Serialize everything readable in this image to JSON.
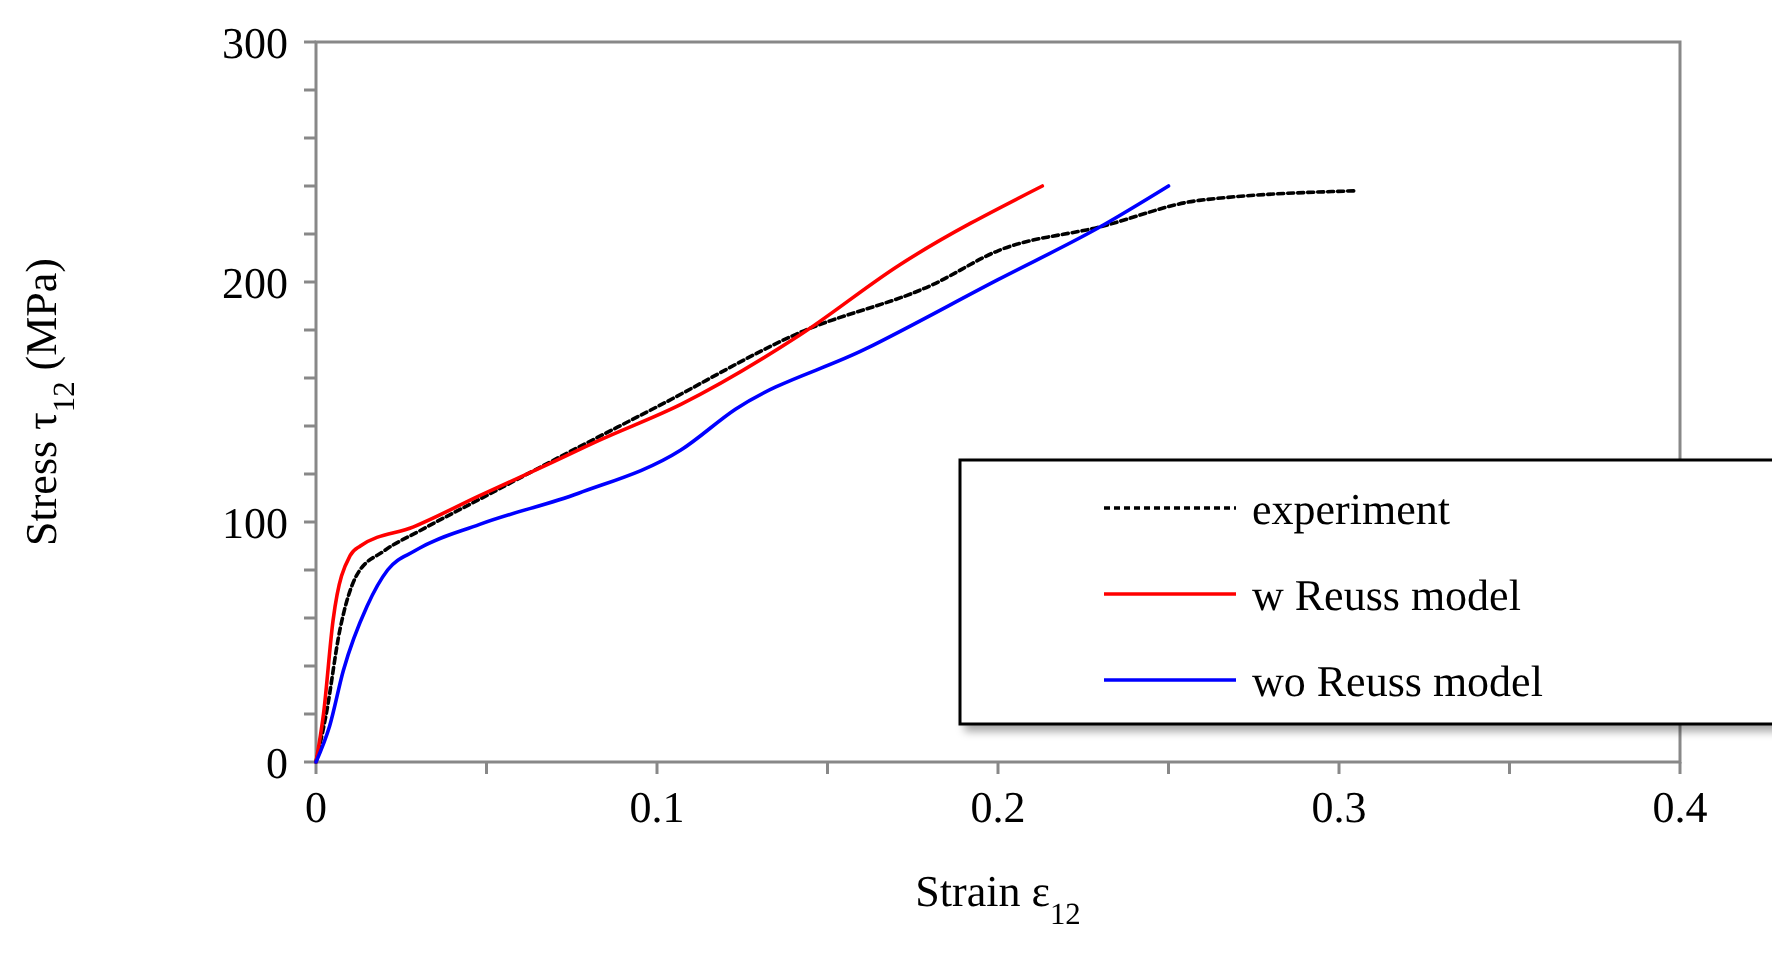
{
  "chart_data": {
    "type": "line",
    "xlabel": "Strain ε$_{12}$",
    "ylabel": "Stress  τ$_{12}$ (MPa)",
    "xlim": [
      0,
      0.4
    ],
    "ylim": [
      0,
      300
    ],
    "xticks": [
      0,
      {
        "value": 0.05,
        "label": null
      },
      0.1,
      {
        "value": 0.15,
        "label": null
      },
      0.2,
      {
        "value": 0.25,
        "label": null
      },
      0.3,
      {
        "value": 0.35,
        "label": null
      },
      0.4
    ],
    "yticks": [
      0,
      {
        "value": 20,
        "label": null
      },
      {
        "value": 40,
        "label": null
      },
      {
        "value": 60,
        "label": null
      },
      {
        "value": 80,
        "label": null
      },
      100,
      {
        "value": 120,
        "label": null
      },
      {
        "value": 140,
        "label": null
      },
      {
        "value": 160,
        "label": null
      },
      {
        "value": 180,
        "label": null
      },
      200,
      {
        "value": 220,
        "label": null
      },
      {
        "value": 240,
        "label": null
      },
      {
        "value": 260,
        "label": null
      },
      {
        "value": 280,
        "label": null
      },
      300
    ],
    "grid": false,
    "legend": "right",
    "marker": "none",
    "series": [
      {
        "name": "experiment",
        "color": "#000000",
        "line_style": "dotted",
        "x": [
          0,
          0.003,
          0.007,
          0.012,
          0.02,
          0.03,
          0.05,
          0.07,
          0.1,
          0.142,
          0.181,
          0.2,
          0.23,
          0.259,
          0.305
        ],
        "values": [
          0,
          20,
          55,
          78,
          88,
          96,
          111,
          126,
          148,
          179,
          199,
          213,
          223,
          234,
          238
        ]
      },
      {
        "name": "w Reuss model",
        "color": "#ff0000",
        "line_style": "solid",
        "x": [
          0,
          0.0022,
          0.005,
          0.01,
          0.013,
          0.0286,
          0.048,
          0.068,
          0.083,
          0.107,
          0.142,
          0.171,
          0.213
        ],
        "values": [
          0,
          20,
          59,
          86,
          90,
          98,
          111,
          124,
          134,
          149,
          178,
          207,
          240
        ]
      },
      {
        "name": "wo Reuss model",
        "color": "#0000ff",
        "line_style": "solid",
        "x": [
          0,
          0.004,
          0.008,
          0.015,
          0.021,
          0.029,
          0.048,
          0.077,
          0.107,
          0.123,
          0.161,
          0.2,
          0.23,
          0.25
        ],
        "values": [
          0,
          15,
          38,
          65,
          80,
          88,
          99,
          112,
          130,
          147,
          172,
          201,
          223,
          240
        ]
      }
    ]
  }
}
